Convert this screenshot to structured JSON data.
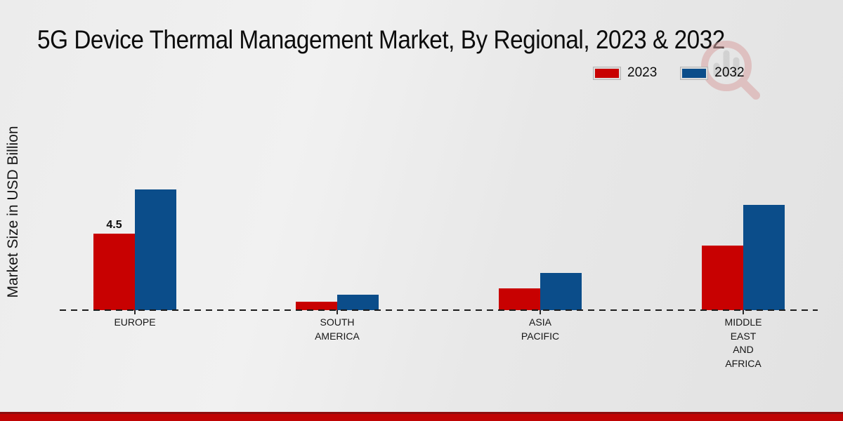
{
  "title": "5G Device Thermal Management Market, By Regional, 2023 & 2032",
  "ylabel": "Market Size in USD Billion",
  "legend": {
    "items": [
      {
        "label": "2023",
        "color": "#c80101"
      },
      {
        "label": "2032",
        "color": "#0b4d8a"
      }
    ]
  },
  "watermark_icon": "magnifying-glass-bar-chart-logo",
  "footer": {
    "accent_color": "#c00404"
  },
  "chart_data": {
    "type": "bar",
    "title": "5G Device Thermal Management Market, By Regional, 2023 & 2032",
    "xlabel": "",
    "ylabel": "Market Size in USD Billion",
    "categories": [
      "EUROPE",
      "SOUTH AMERICA",
      "ASIA PACIFIC",
      "MIDDLE EAST AND AFRICA"
    ],
    "category_label_lines": [
      [
        "EUROPE"
      ],
      [
        "SOUTH",
        "AMERICA"
      ],
      [
        "ASIA",
        "PACIFIC"
      ],
      [
        "MIDDLE",
        "EAST",
        "AND",
        "AFRICA"
      ]
    ],
    "series": [
      {
        "name": "2023",
        "color": "#c80101",
        "values": [
          4.5,
          0.5,
          1.3,
          3.8
        ]
      },
      {
        "name": "2032",
        "color": "#0b4d8a",
        "values": [
          7.1,
          0.9,
          2.2,
          6.2
        ]
      }
    ],
    "data_labels": [
      {
        "series": "2023",
        "category": "EUROPE",
        "text": "4.5"
      }
    ],
    "unit": "USD Billion",
    "ylim": [
      0,
      8
    ],
    "grid": false,
    "y_axis_ticks_visible": false,
    "baseline_style": "dashed",
    "legend_position": "top-right"
  }
}
